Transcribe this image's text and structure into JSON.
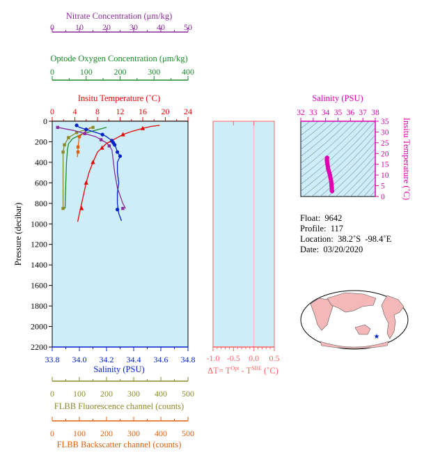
{
  "colors": {
    "nitrate": "#8b2a9a",
    "oxygen": "#1a8a2a",
    "temperature": "#e60000",
    "salinity": "#0020c8",
    "fluorescence": "#8a8a28",
    "backscatter": "#e06010",
    "delta": "#ff6060",
    "ts": "#e000b0",
    "plot_bg": "#cdeef8",
    "land": "#f4b8b8"
  },
  "labels": {
    "nitrate_title": "Nitrate Concentration (μm/kg)",
    "oxygen_title": "Optode Oxygen Concentration (μm/kg)",
    "temperature_title": "Insitu Temperature (˚C)",
    "salinity_title": "Salinity (PSU)",
    "pressure_title": "Pressure (decibar)",
    "fluorescence_title": "FLBB Fluorescence channel (counts)",
    "backscatter_title": "FLBB Backscatter channel (counts)",
    "delta_title_a": "ΔT= T",
    "delta_title_sup1": "Opt",
    "delta_title_b": " - T",
    "delta_title_sup2": "SBE",
    "delta_title_c": " (˚C)",
    "ts_top_title": "Salinity (PSU)",
    "ts_right_title": "Insitu Temperature (˚C)"
  },
  "info": {
    "float": "Float:  9642",
    "profile": "Profile:  117",
    "location": "Location:  38.2˚S  -98.4˚E",
    "date": "Date:  03/20/2020"
  },
  "chart_data": [
    {
      "type": "line",
      "name": "profile",
      "ylabel": "Pressure (decibar)",
      "ylim": [
        2200,
        0
      ],
      "yticks": [
        "0",
        "200",
        "400",
        "600",
        "800",
        "1000",
        "1200",
        "1400",
        "1600",
        "1800",
        "2000",
        "2200"
      ],
      "axes": {
        "nitrate": {
          "range": [
            0,
            50
          ],
          "ticks": [
            "0",
            "10",
            "20",
            "30",
            "40",
            "50"
          ]
        },
        "oxygen": {
          "range": [
            0,
            400
          ],
          "ticks": [
            "0",
            "100",
            "200",
            "300",
            "400"
          ]
        },
        "temperature": {
          "range": [
            0,
            24
          ],
          "ticks": [
            "0",
            "4",
            "8",
            "12",
            "16",
            "20",
            "24"
          ]
        },
        "salinity": {
          "range": [
            33.8,
            34.8
          ],
          "ticks": [
            "33.8",
            "34.0",
            "34.2",
            "34.4",
            "34.6",
            "34.8"
          ]
        },
        "fluorescence": {
          "range": [
            0,
            500
          ],
          "ticks": [
            "0",
            "100",
            "200",
            "300",
            "400",
            "500"
          ]
        },
        "backscatter": {
          "range": [
            0,
            500
          ],
          "ticks": [
            "0",
            "100",
            "200",
            "300",
            "400",
            "500"
          ]
        }
      },
      "series": [
        {
          "key": "salinity",
          "points": [
            [
              33.98,
              40
            ],
            [
              34.0,
              60
            ],
            [
              34.05,
              80
            ],
            [
              34.1,
              100
            ],
            [
              34.17,
              130
            ],
            [
              34.2,
              150
            ],
            [
              34.22,
              170
            ],
            [
              34.24,
              190
            ],
            [
              34.25,
              210
            ],
            [
              34.26,
              230
            ],
            [
              34.27,
              260
            ],
            [
              34.28,
              300
            ],
            [
              34.3,
              340
            ],
            [
              34.28,
              400
            ],
            [
              34.28,
              500
            ],
            [
              34.29,
              600
            ],
            [
              34.28,
              700
            ],
            [
              34.28,
              800
            ],
            [
              34.29,
              900
            ],
            [
              34.31,
              970
            ]
          ],
          "markers": [
            [
              33.98,
              40
            ],
            [
              34.05,
              80
            ],
            [
              34.17,
              130
            ],
            [
              34.24,
              190
            ],
            [
              34.25,
              210
            ],
            [
              34.26,
              230
            ],
            [
              34.28,
              300
            ],
            [
              34.3,
              340
            ],
            [
              34.28,
              860
            ]
          ]
        },
        {
          "key": "temperature",
          "points": [
            [
              19.0,
              40
            ],
            [
              17.5,
              50
            ],
            [
              16.0,
              70
            ],
            [
              14.0,
              100
            ],
            [
              12.5,
              130
            ],
            [
              11.5,
              160
            ],
            [
              10.5,
              190
            ],
            [
              9.5,
              220
            ],
            [
              8.8,
              260
            ],
            [
              8.0,
              300
            ],
            [
              7.2,
              400
            ],
            [
              6.5,
              500
            ],
            [
              6.0,
              600
            ],
            [
              5.6,
              700
            ],
            [
              5.2,
              800
            ],
            [
              4.8,
              900
            ],
            [
              4.5,
              980
            ]
          ],
          "markers": [
            [
              16.0,
              70
            ],
            [
              12.5,
              130
            ],
            [
              10.5,
              190
            ],
            [
              8.8,
              260
            ],
            [
              7.2,
              400
            ],
            [
              6.0,
              600
            ],
            [
              5.2,
              850
            ]
          ]
        },
        {
          "key": "nitrate",
          "points": [
            [
              2,
              60
            ],
            [
              8,
              90
            ],
            [
              12,
              120
            ],
            [
              16,
              150
            ],
            [
              18,
              180
            ],
            [
              20,
              210
            ],
            [
              21,
              240
            ],
            [
              22,
              280
            ],
            [
              23,
              500
            ],
            [
              24,
              650
            ],
            [
              26,
              800
            ],
            [
              27,
              850
            ]
          ],
          "markers": [
            [
              2,
              60
            ],
            [
              12,
              120
            ],
            [
              18,
              180
            ],
            [
              21,
              240
            ],
            [
              26,
              850
            ]
          ]
        },
        {
          "key": "oxygen",
          "points": [
            [
              160,
              60
            ],
            [
              90,
              120
            ],
            [
              60,
              170
            ],
            [
              48,
              220
            ],
            [
              45,
              280
            ],
            [
              42,
              400
            ],
            [
              40,
              600
            ],
            [
              38,
              850
            ]
          ]
        },
        {
          "key": "fluorescence",
          "points": [
            [
              150,
              60
            ],
            [
              90,
              110
            ],
            [
              60,
              160
            ],
            [
              45,
              230
            ],
            [
              40,
              300
            ],
            [
              40,
              850
            ]
          ],
          "markers": [
            [
              150,
              60
            ],
            [
              90,
              110
            ],
            [
              60,
              160
            ],
            [
              45,
              230
            ],
            [
              40,
              300
            ],
            [
              40,
              850
            ]
          ]
        },
        {
          "key": "backscatter",
          "points": [
            [
              140,
              60
            ],
            [
              100,
              150
            ],
            [
              95,
              250
            ],
            [
              95,
              300
            ],
            [
              92,
              350
            ]
          ],
          "markers": [
            [
              100,
              150
            ],
            [
              95,
              250
            ],
            [
              95,
              300
            ]
          ]
        }
      ]
    },
    {
      "type": "line",
      "name": "delta",
      "xlim": [
        -1.0,
        0.5
      ],
      "xticks": [
        "-1.0",
        "-0.5",
        "0.0",
        "0.5"
      ],
      "ylim": [
        2200,
        0
      ],
      "series": []
    },
    {
      "type": "scatter",
      "name": "ts",
      "xlim": [
        32,
        38
      ],
      "xticks": [
        "32",
        "33",
        "34",
        "35",
        "36",
        "37",
        "38"
      ],
      "ylim": [
        0,
        35
      ],
      "yticks": [
        "0",
        "5",
        "10",
        "15",
        "20",
        "25",
        "30",
        "35"
      ],
      "points": [
        [
          34.52,
          2.5
        ],
        [
          34.5,
          3
        ],
        [
          34.5,
          4
        ],
        [
          34.48,
          5
        ],
        [
          34.47,
          6
        ],
        [
          34.45,
          7
        ],
        [
          34.42,
          8
        ],
        [
          34.38,
          9
        ],
        [
          34.35,
          10
        ],
        [
          34.3,
          11
        ],
        [
          34.25,
          12
        ],
        [
          34.2,
          13
        ],
        [
          34.18,
          14
        ],
        [
          34.15,
          15
        ],
        [
          34.12,
          16
        ],
        [
          34.1,
          17
        ],
        [
          34.12,
          18
        ]
      ]
    }
  ]
}
